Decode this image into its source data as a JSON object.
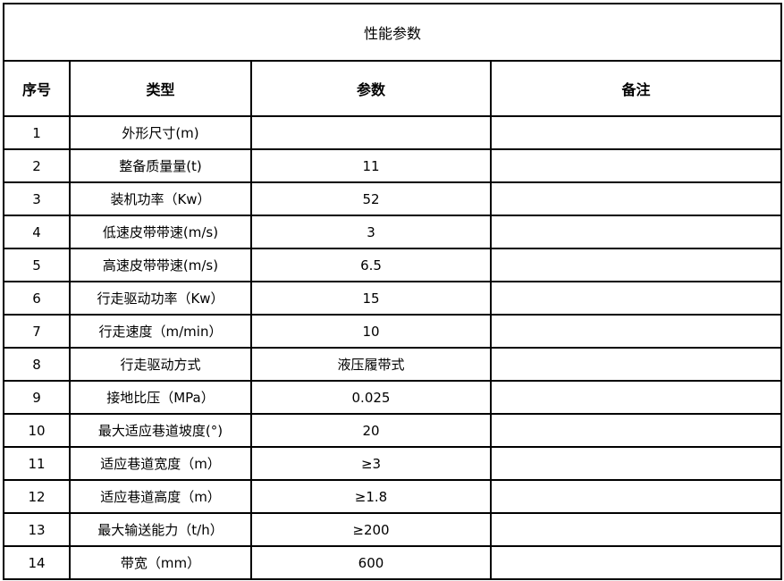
{
  "title": "性能参数",
  "headers": {
    "index": "序号",
    "type": "类型",
    "param": "参数",
    "note": "备注"
  },
  "rows": [
    {
      "index": "1",
      "type": "外形尺寸(m)",
      "param": "",
      "note": ""
    },
    {
      "index": "2",
      "type": "整备质量量(t)",
      "param": "11",
      "note": ""
    },
    {
      "index": "3",
      "type": "装机功率（Kw）",
      "param": "52",
      "note": ""
    },
    {
      "index": "4",
      "type": "低速皮带带速(m/s)",
      "param": "3",
      "note": ""
    },
    {
      "index": "5",
      "type": "高速皮带带速(m/s)",
      "param": "6.5",
      "note": ""
    },
    {
      "index": "6",
      "type": "行走驱动功率（Kw）",
      "param": "15",
      "note": ""
    },
    {
      "index": "7",
      "type": "行走速度（m/min）",
      "param": "10",
      "note": ""
    },
    {
      "index": "8",
      "type": "行走驱动方式",
      "param": "液压履带式",
      "note": ""
    },
    {
      "index": "9",
      "type": "接地比压（MPa）",
      "param": "0.025",
      "note": ""
    },
    {
      "index": "10",
      "type": "最大适应巷道坡度(°)",
      "param": "20",
      "note": ""
    },
    {
      "index": "11",
      "type": "适应巷道宽度（m）",
      "param": "≥3",
      "note": ""
    },
    {
      "index": "12",
      "type": "适应巷道高度（m）",
      "param": "≥1.8",
      "note": ""
    },
    {
      "index": "13",
      "type": "最大输送能力（t/h）",
      "param": "≥200",
      "note": ""
    },
    {
      "index": "14",
      "type": "带宽（mm）",
      "param": "600",
      "note": ""
    }
  ]
}
